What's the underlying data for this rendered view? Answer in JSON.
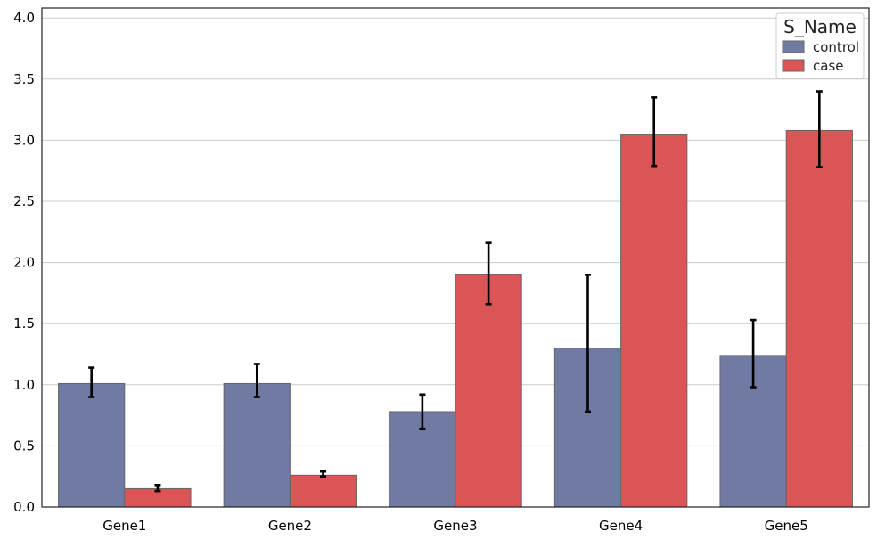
{
  "chart_data": {
    "type": "bar",
    "categories": [
      "Gene1",
      "Gene2",
      "Gene3",
      "Gene4",
      "Gene5"
    ],
    "series": [
      {
        "name": "control",
        "color": "#717aa3",
        "values": [
          1.01,
          1.01,
          0.78,
          1.3,
          1.24
        ],
        "error_low": [
          0.9,
          0.9,
          0.64,
          0.78,
          0.98
        ],
        "error_high": [
          1.14,
          1.17,
          0.92,
          1.9,
          1.53
        ]
      },
      {
        "name": "case",
        "color": "#db5456",
        "values": [
          0.15,
          0.26,
          1.9,
          3.05,
          3.08
        ],
        "error_low": [
          0.13,
          0.25,
          1.66,
          2.79,
          2.78
        ],
        "error_high": [
          0.18,
          0.29,
          2.16,
          3.35,
          3.4
        ]
      }
    ],
    "title": "",
    "xlabel": "",
    "ylabel": "",
    "ylim": [
      0,
      4.0
    ],
    "yticks": [
      "0.0",
      "0.5",
      "1.0",
      "1.5",
      "2.0",
      "2.5",
      "3.0",
      "3.5",
      "4.0"
    ],
    "grid": "horizontal",
    "legend": {
      "title": "S_Name",
      "position": "top-right"
    }
  }
}
